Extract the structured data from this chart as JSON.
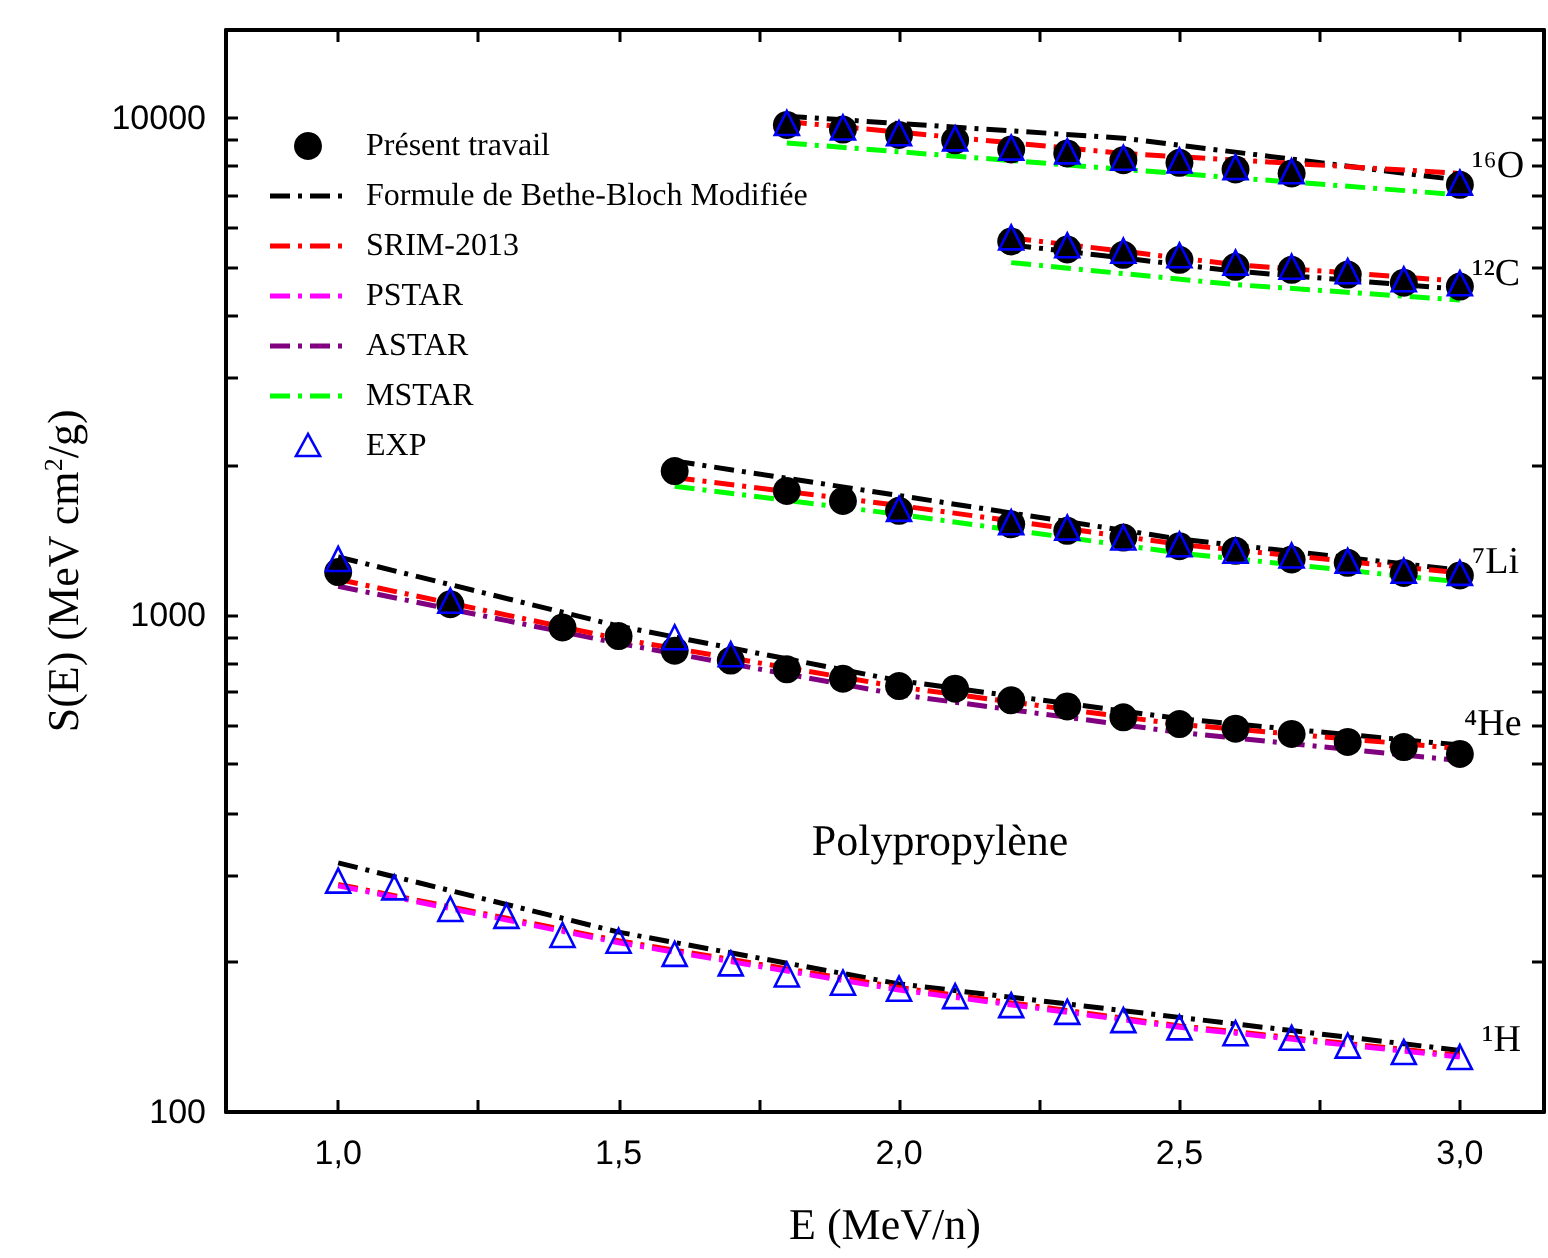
{
  "chart_data": {
    "type": "line",
    "xlabel": "E (MeV/n)",
    "ylabel": "S(E) (MeV cm$^{2}$/g)",
    "xlim": [
      0.8,
      3.15
    ],
    "xticks": [
      {
        "value": 1,
        "label": "1,0"
      },
      {
        "value": 1.25,
        "label": null
      },
      {
        "value": 1.5,
        "label": "1,5"
      },
      {
        "value": 1.75,
        "label": null
      },
      {
        "value": 2,
        "label": "2,0"
      },
      {
        "value": 2.25,
        "label": null
      },
      {
        "value": 2.5,
        "label": "2,5"
      },
      {
        "value": 2.75,
        "label": null
      },
      {
        "value": 3,
        "label": "3,0"
      }
    ],
    "ylim": [
      100,
      15000
    ],
    "log": "y",
    "yticks": [
      100,
      {
        "value": 200,
        "label": null
      },
      {
        "value": 300,
        "label": null
      },
      {
        "value": 400,
        "label": null
      },
      {
        "value": 500,
        "label": null
      },
      {
        "value": 600,
        "label": null
      },
      {
        "value": 700,
        "label": null
      },
      {
        "value": 800,
        "label": null
      },
      {
        "value": 900,
        "label": null
      },
      1000,
      {
        "value": 2000,
        "label": null
      },
      {
        "value": 3000,
        "label": null
      },
      {
        "value": 4000,
        "label": null
      },
      {
        "value": 5000,
        "label": null
      },
      {
        "value": 6000,
        "label": null
      },
      {
        "value": 7000,
        "label": null
      },
      {
        "value": 8000,
        "label": null
      },
      {
        "value": 9000,
        "label": null
      },
      10000
    ],
    "legend": "top left",
    "grid": false,
    "line_style": "dashed",
    "annotations": [
      "¹⁶O",
      "¹²C",
      "⁷Li",
      "⁴He",
      "¹H",
      "Polypropylène"
    ],
    "series": [
      {
        "name": "Présent travail",
        "type": "scatter",
        "marker": "circle",
        "color": "#000000",
        "x": [
          1.0,
          1.2,
          1.4,
          1.5,
          1.6,
          1.7,
          1.8,
          1.9,
          2.0,
          2.1,
          2.2,
          2.3,
          2.4,
          2.5,
          2.6,
          2.7,
          2.8,
          2.9,
          3.0
        ],
        "values": [
          1219,
          1050,
          943,
          906,
          847,
          809,
          777,
          744,
          719,
          710,
          673,
          654,
          622,
          603,
          590,
          576,
          555,
          542,
          525
        ]
      },
      {
        "name": "Formule de Bethe-Bloch Modifiée",
        "color": "#000000",
        "x": [
          1.0,
          1.5,
          2.0,
          2.5,
          3.0
        ],
        "values": [
          317,
          230,
          181,
          155,
          133
        ]
      },
      {
        "name": "SRIM-2013",
        "color": "#ff0000",
        "x": [
          1.0,
          1.5,
          2.0,
          2.5,
          3.0
        ],
        "values": [
          287,
          221,
          178,
          149,
          130
        ]
      },
      {
        "name": "PSTAR",
        "color": "#ff00ff",
        "x": [
          1.0,
          1.5,
          2.0,
          2.5,
          3.0
        ],
        "values": [
          285,
          219,
          176,
          148,
          129
        ]
      },
      {
        "name": "ASTAR",
        "color": "#800080",
        "x": [
          1.0,
          1.5,
          2.0,
          2.5,
          3.0
        ],
        "values": [
          1141,
          876,
          691,
          580,
          509
        ]
      },
      {
        "name": "MSTAR",
        "color": "#00ff00",
        "x": [
          1.6,
          2.0,
          2.5,
          3.0
        ],
        "values": [
          1813,
          1592,
          1331,
          1164
        ]
      },
      {
        "name": "EXP",
        "type": "scatter",
        "marker": "triangle",
        "color": "#0000ff",
        "x": [
          1.0,
          1.1,
          1.2,
          1.3,
          1.4,
          1.5,
          1.6,
          1.7,
          1.8,
          1.9,
          2.0,
          2.1,
          2.2,
          2.3,
          2.4,
          2.5,
          2.6,
          2.7,
          2.8,
          2.9,
          3.0
        ],
        "values": [
          292,
          283,
          256,
          248,
          227,
          221,
          208,
          199,
          189,
          182,
          177,
          171,
          164,
          159,
          153,
          148,
          144,
          141,
          136,
          132,
          129
        ]
      },
      {
        "type": "scatter",
        "marker": "circle",
        "color": "#000000",
        "x": [
          1.6,
          1.8,
          1.9,
          2.0,
          2.2,
          2.3,
          2.4,
          2.5,
          2.6,
          2.7,
          2.8,
          2.9,
          3.0
        ],
        "values": [
          1945,
          1774,
          1694,
          1618,
          1520,
          1475,
          1430,
          1374,
          1345,
          1292,
          1272,
          1214,
          1200
        ]
      },
      {
        "type": "scatter",
        "marker": "circle",
        "color": "#000000",
        "x": [
          2.2,
          2.3,
          2.4,
          2.5,
          2.6,
          2.7,
          2.8,
          2.9,
          3.0
        ],
        "values": [
          5636,
          5430,
          5297,
          5176,
          5011,
          4940,
          4833,
          4656,
          4571
        ]
      },
      {
        "type": "scatter",
        "marker": "circle",
        "color": "#000000",
        "x": [
          1.8,
          1.9,
          2.0,
          2.1,
          2.2,
          2.3,
          2.4,
          2.5,
          2.6,
          2.7,
          3.0
        ],
        "values": [
          9663,
          9460,
          9226,
          9000,
          8626,
          8470,
          8209,
          8110,
          7866,
          7722,
          7324
        ]
      },
      {
        "color": "#000000",
        "x": [
          1.0,
          1.5,
          2.0,
          2.5,
          3.0
        ],
        "values": [
          1307,
          949,
          737,
          618,
          547
        ]
      },
      {
        "color": "#000000",
        "x": [
          1.6,
          2.0,
          2.5,
          3.0
        ],
        "values": [
          2038,
          1737,
          1420,
          1230
        ]
      },
      {
        "color": "#000000",
        "x": [
          2.2,
          2.6,
          3.0
        ],
        "values": [
          5546,
          4909,
          4515
        ]
      },
      {
        "color": "#000000",
        "x": [
          1.8,
          2.4,
          3.0
        ],
        "values": [
          10064,
          9090,
          7483
        ]
      },
      {
        "color": "#ff0000",
        "x": [
          1.0,
          1.5,
          2.0,
          2.5,
          3.0
        ],
        "values": [
          1178,
          895,
          716,
          602,
          538
        ]
      },
      {
        "color": "#ff0000",
        "x": [
          1.6,
          2.0,
          2.5,
          3.0
        ],
        "values": [
          1888,
          1659,
          1386,
          1214
        ]
      },
      {
        "color": "#ff0000",
        "x": [
          2.2,
          2.6,
          3.0
        ],
        "values": [
          5728,
          5060,
          4686
        ]
      },
      {
        "color": "#ff0000",
        "x": [
          1.8,
          2.4,
          3.0
        ],
        "values": [
          9817,
          8470,
          7722
        ]
      },
      {
        "color": "#00ff00",
        "x": [
          2.2,
          2.6,
          3.0
        ],
        "values": [
          5108,
          4613,
          4297
        ]
      },
      {
        "color": "#00ff00",
        "x": [
          1.8,
          2.4,
          3.0
        ],
        "values": [
          8891,
          7866,
          6994
        ]
      },
      {
        "type": "scatter",
        "marker": "triangle",
        "color": "#0000ff",
        "x": [
          1.0,
          1.2,
          1.6,
          1.7
        ],
        "values": [
          1295,
          1067,
          901,
          833
        ]
      },
      {
        "type": "scatter",
        "marker": "triangle",
        "color": "#0000ff",
        "x": [
          2.0,
          2.2,
          2.3,
          2.4,
          2.5,
          2.6,
          2.7,
          2.8,
          2.9,
          3.0
        ],
        "values": [
          1633,
          1535,
          1497,
          1430,
          1386,
          1345,
          1316,
          1284,
          1226,
          1214
        ]
      },
      {
        "type": "scatter",
        "marker": "triangle",
        "color": "#0000ff",
        "x": [
          2.2,
          2.3,
          2.4,
          2.5,
          2.6,
          2.7,
          2.8,
          2.9,
          3.0
        ],
        "values": [
          5741,
          5534,
          5397,
          5284,
          5108,
          5011,
          4909,
          4728,
          4644
        ]
      },
      {
        "type": "scatter",
        "marker": "triangle",
        "color": "#0000ff",
        "x": [
          1.8,
          1.9,
          2.0,
          2.1,
          2.2,
          2.3,
          2.4,
          2.5,
          2.6,
          2.7,
          3.0
        ],
        "values": [
          9750,
          9550,
          9300,
          9080,
          8700,
          8550,
          8300,
          8200,
          7950,
          7800,
          7400
        ]
      }
    ]
  }
}
